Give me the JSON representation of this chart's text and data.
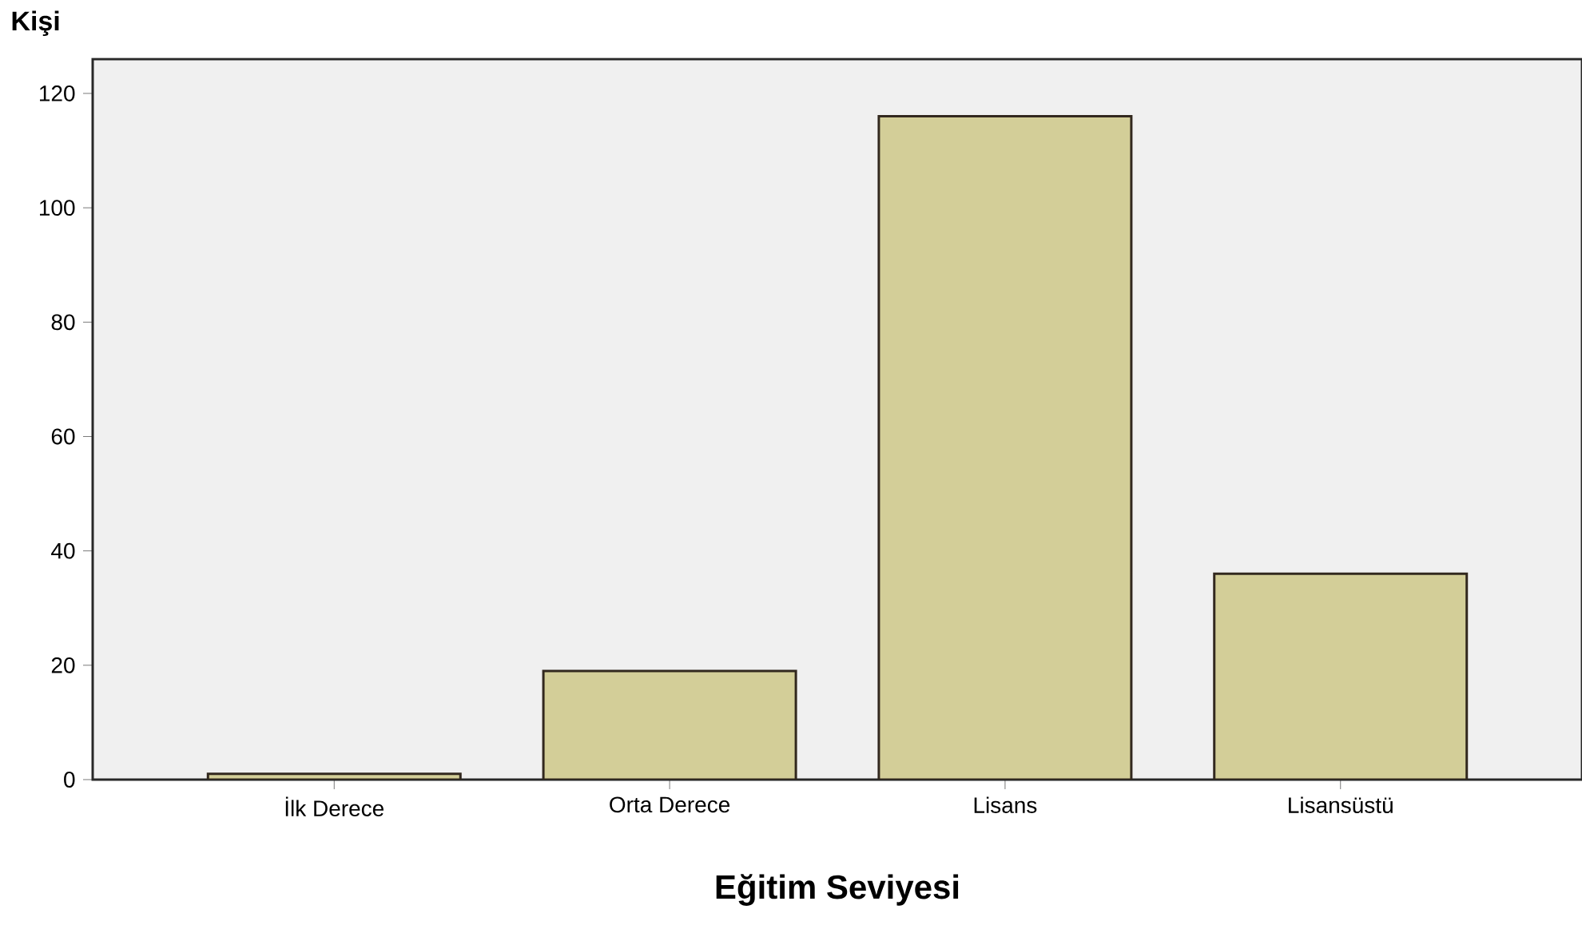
{
  "chart_data": {
    "type": "bar",
    "xlabel": "Eğitim  Seviyesi",
    "ylabel": "Kişi",
    "categories": [
      "İlk Derece",
      "Orta Derece",
      "Lisans",
      "Lisansüstü"
    ],
    "values": [
      1,
      19,
      116,
      36
    ],
    "color": "#d3ce98",
    "ylim": [
      0,
      126
    ],
    "yticks": [
      0,
      20,
      40,
      60,
      80,
      100,
      120
    ]
  }
}
